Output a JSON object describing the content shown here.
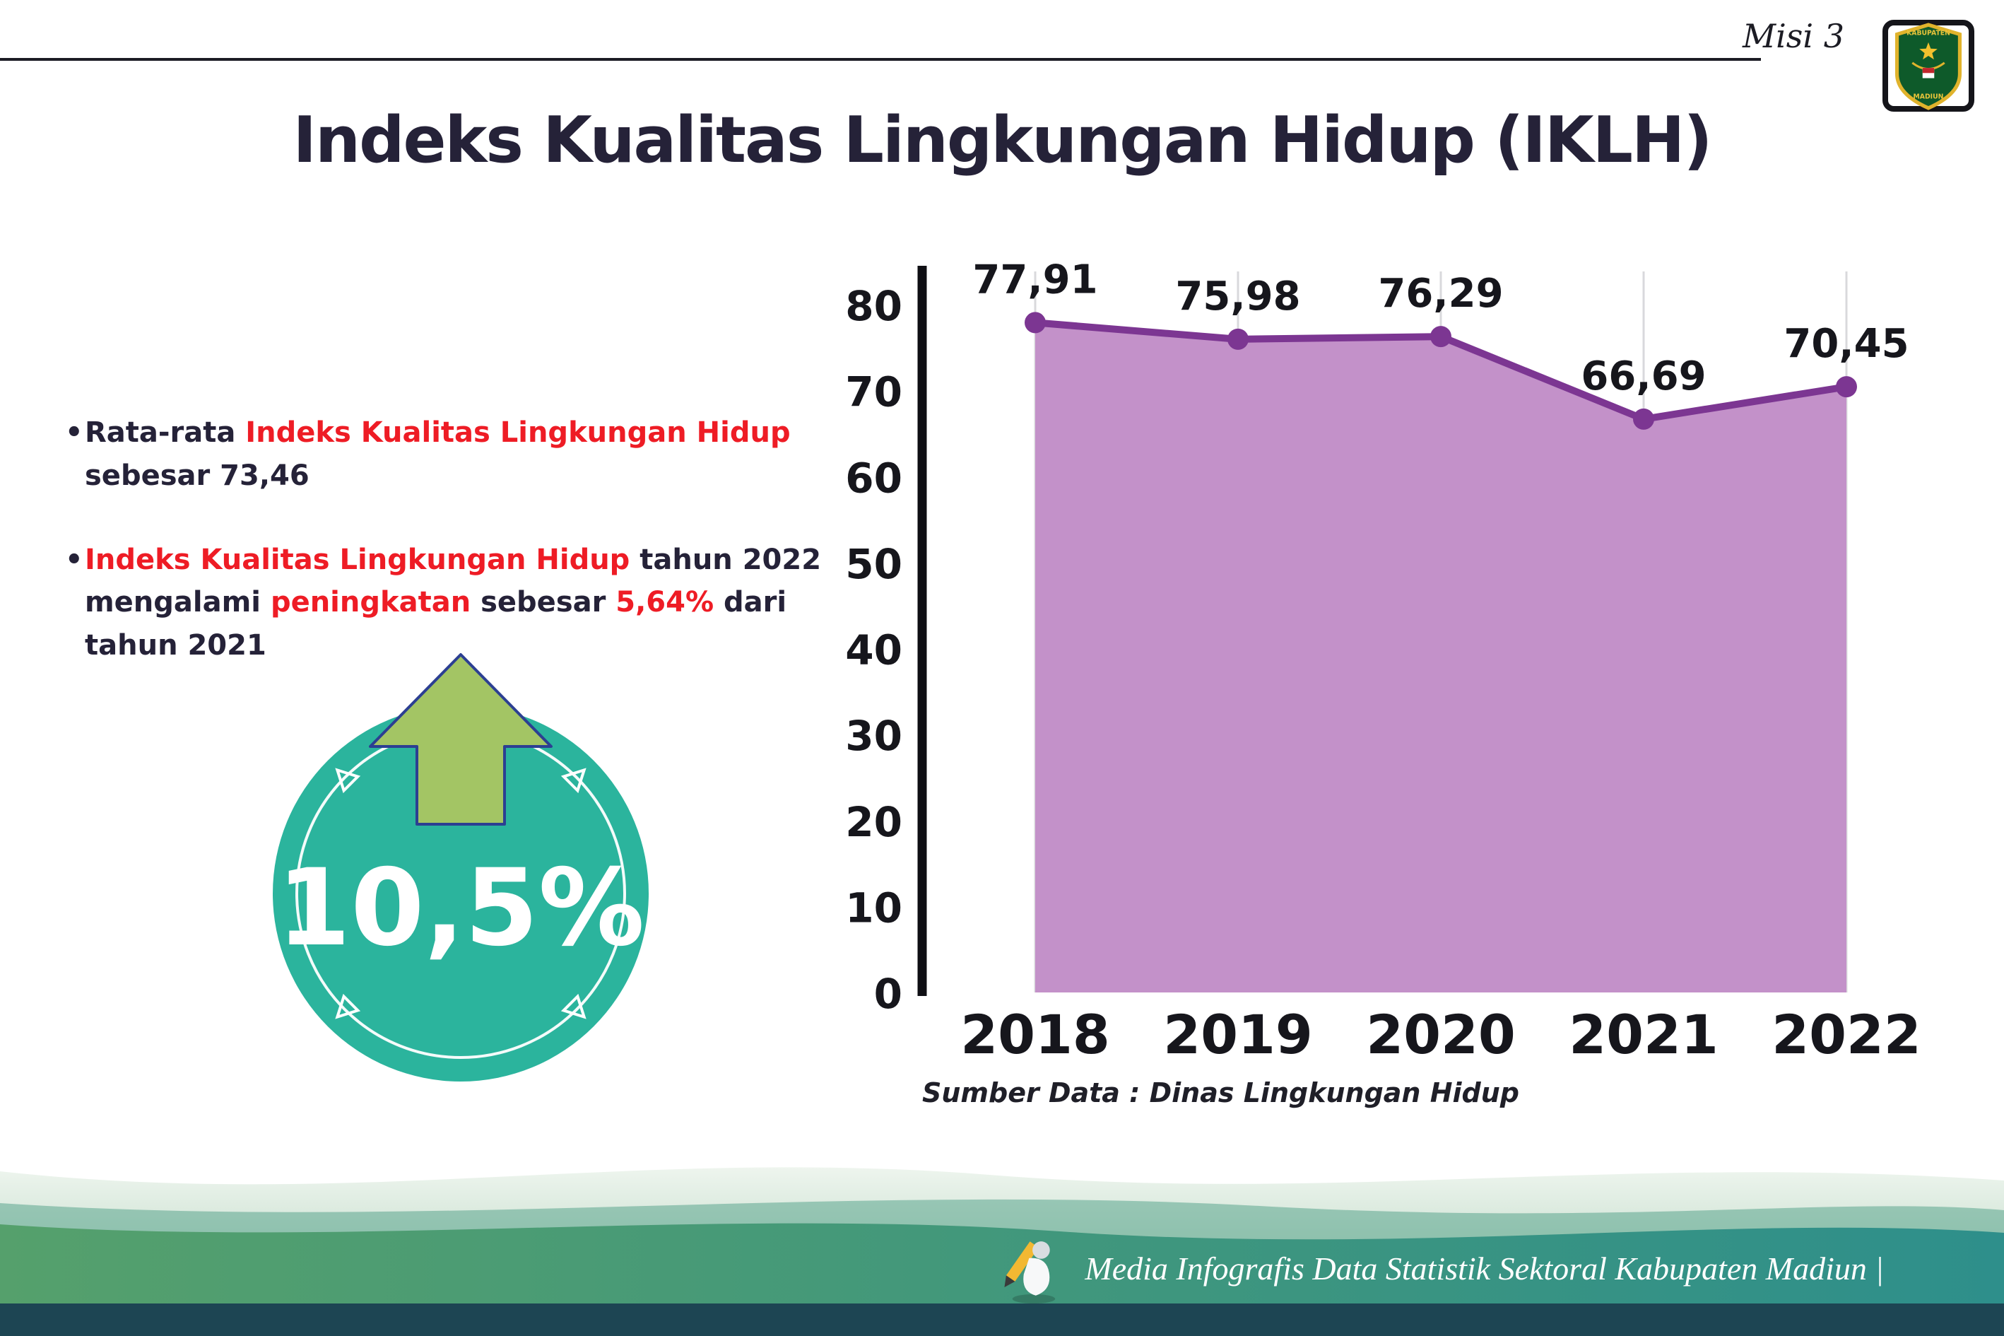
{
  "header": {
    "misi_label": "Misi 3"
  },
  "title": "Indeks Kualitas Lingkungan Hidup (IKLH)",
  "bullets": [
    {
      "segments": [
        {
          "text": "Rata-rata ",
          "red": false
        },
        {
          "text": "Indeks Kualitas Lingkungan Hidup",
          "red": true
        },
        {
          "text": " sebesar 73,46",
          "red": false
        }
      ]
    },
    {
      "segments": [
        {
          "text": "Indeks Kualitas Lingkungan Hidup",
          "red": true
        },
        {
          "text": " tahun 2022 mengalami ",
          "red": false
        },
        {
          "text": "peningkatan",
          "red": true
        },
        {
          "text": " sebesar ",
          "red": false
        },
        {
          "text": "5,64%",
          "red": true
        },
        {
          "text": " dari tahun 2021",
          "red": false
        }
      ]
    }
  ],
  "badge": {
    "value": "10,5%"
  },
  "chart_data": {
    "type": "area",
    "title": "Indeks Kualitas Lingkungan Hidup (IKLH)",
    "categories": [
      "2018",
      "2019",
      "2020",
      "2021",
      "2022"
    ],
    "values": [
      77.91,
      75.98,
      76.29,
      66.69,
      70.45
    ],
    "point_labels": [
      "77,91",
      "75,98",
      "76,29",
      "66,69",
      "70,45"
    ],
    "xlabel": "",
    "ylabel": "",
    "ylim": [
      0,
      80
    ],
    "ytick_step": 10,
    "grid": "vertical",
    "legend": "none",
    "line_color": "#7c3692",
    "fill_color": "#c391c9",
    "source_note": "Sumber Data : Dinas Lingkungan Hidup"
  },
  "footer": {
    "credit": "Media Infografis Data Statistik Sektoral Kabupaten Madiun |"
  },
  "logo": {
    "name": "kabupaten-madiun-crest",
    "top_text": "KABUPATEN",
    "bottom_text": "MADIUN"
  },
  "colors": {
    "accent_red": "#ee1c25",
    "dark_text": "#252238",
    "badge_teal": "#2bb49d",
    "arrow_green": "#a3c564",
    "chart_line_purple": "#7c3692",
    "chart_fill_purple": "#c391c9",
    "footer_green": "#55a06c",
    "footer_teal": "#2e8f8b",
    "footer_dark": "#1d4553"
  }
}
